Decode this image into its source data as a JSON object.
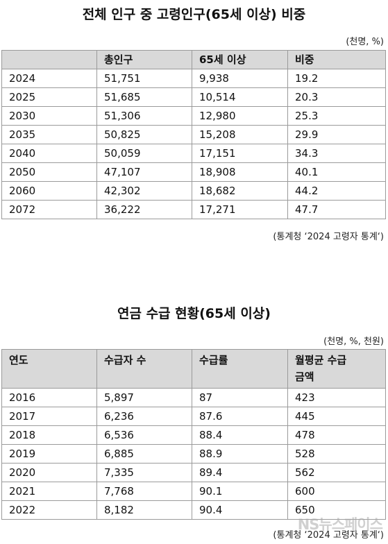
{
  "table1": {
    "title": "전체 인구 중 고령인구(65세 이상) 비중",
    "unit": "(천명, %)",
    "headers": [
      "",
      "총인구",
      "65세 이상",
      "비중"
    ],
    "rows": [
      [
        "2024",
        "51,751",
        "9,938",
        "19.2"
      ],
      [
        "2025",
        "51,685",
        "10,514",
        "20.3"
      ],
      [
        "2030",
        "51,306",
        "12,980",
        "25.3"
      ],
      [
        "2035",
        "50,825",
        "15,208",
        "29.9"
      ],
      [
        "2040",
        "50,059",
        "17,151",
        "34.3"
      ],
      [
        "2050",
        "47,107",
        "18,908",
        "40.1"
      ],
      [
        "2060",
        "42,302",
        "18,682",
        "44.2"
      ],
      [
        "2072",
        "36,222",
        "17,271",
        "47.7"
      ]
    ],
    "source": "(통계청 ‘2024 고령자 통계‘)"
  },
  "table2": {
    "title": "연금 수급 현황(65세 이상)",
    "unit": "(천명, %, 천원)",
    "headers": [
      "연도",
      "수급자 수",
      "수급률",
      "월평균 수급\n금액"
    ],
    "rows": [
      [
        "2016",
        "5,897",
        "87",
        "423"
      ],
      [
        "2017",
        "6,236",
        "87.6",
        "445"
      ],
      [
        "2018",
        "6,536",
        "88.4",
        "478"
      ],
      [
        "2019",
        "6,885",
        "88.9",
        "528"
      ],
      [
        "2020",
        "7,335",
        "89.4",
        "562"
      ],
      [
        "2021",
        "7,768",
        "90.1",
        "600"
      ],
      [
        "2022",
        "8,182",
        "90.4",
        "650"
      ]
    ],
    "source": "(통계청 ‘2024 고령자 통계‘)"
  },
  "watermark": "NS뉴스페이스"
}
